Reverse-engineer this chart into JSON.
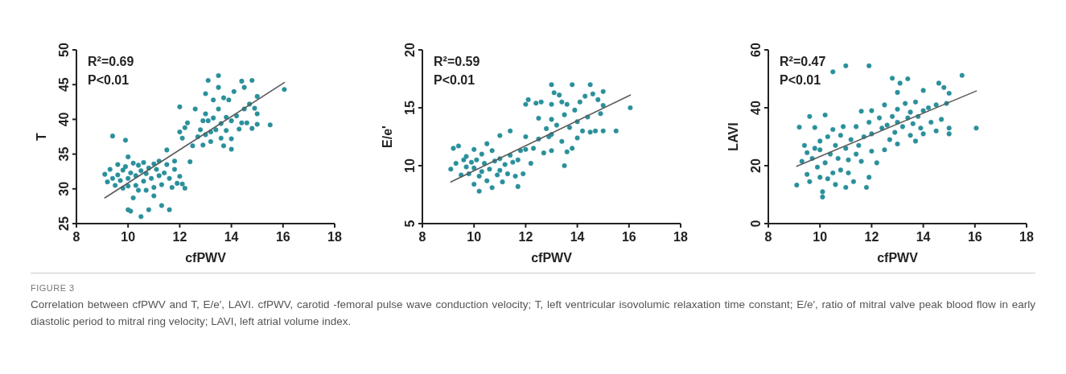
{
  "chart_data": [
    {
      "type": "scatter",
      "xlabel": "cfPWV",
      "ylabel": "T",
      "annotations": [
        "R²=0.69",
        "P<0.01"
      ],
      "xlim": [
        8,
        18
      ],
      "xticks": [
        8,
        10,
        12,
        14,
        16,
        18
      ],
      "ylim": [
        25,
        50
      ],
      "yticks": [
        25,
        30,
        35,
        40,
        45,
        50
      ],
      "marker": "circle",
      "series": [
        {
          "type": "scatter",
          "color": "#2a909b",
          "x": [
            9.1,
            9.2,
            9.3,
            9.4,
            9.4,
            9.5,
            9.6,
            9.6,
            9.7,
            9.8,
            9.8,
            9.9,
            9.9,
            10,
            10,
            10,
            10,
            10.1,
            10.1,
            10.2,
            10.2,
            10.3,
            10.3,
            10.4,
            10.4,
            10.5,
            10.5,
            10.6,
            10.6,
            10.7,
            10.7,
            10.8,
            10.8,
            10.9,
            11,
            11,
            11,
            11.1,
            11.2,
            11.2,
            11.3,
            11.3,
            11.4,
            11.5,
            11.5,
            11.6,
            11.6,
            11.7,
            11.8,
            11.8,
            11.9,
            12,
            12.1,
            12.2,
            12,
            12,
            12.1,
            12.2,
            12.3,
            12.4,
            12.5,
            12.6,
            12.7,
            12.8,
            12.9,
            12.9,
            13,
            13,
            13,
            13.1,
            13.1,
            13.2,
            13.2,
            13.3,
            13.3,
            13.4,
            13.5,
            13.5,
            13.5,
            13.6,
            13.6,
            13.7,
            13.7,
            13.8,
            13.8,
            13.9,
            14,
            14,
            14,
            14.1,
            14.2,
            14.3,
            14.4,
            14.4,
            14.5,
            14.5,
            14.6,
            14.7,
            14.8,
            14.8,
            14.9,
            15,
            15,
            15,
            15.5,
            16.05
          ],
          "values": [
            32.1,
            31,
            32.8,
            37.6,
            31.5,
            30.5,
            33.5,
            32,
            31.2,
            30.1,
            32.7,
            37,
            33.2,
            34.6,
            31.5,
            30.4,
            27,
            26.8,
            32.3,
            33.7,
            28.7,
            31.9,
            30.5,
            33.4,
            29.8,
            26,
            32.6,
            31.1,
            33.8,
            29.8,
            32.2,
            27,
            33,
            31.5,
            33.6,
            30.2,
            29,
            32.8,
            31.9,
            34,
            27.6,
            30.6,
            32.3,
            35.6,
            33.5,
            27,
            31.5,
            30.2,
            32.8,
            34,
            30.8,
            31.8,
            30.7,
            30.1,
            41.8,
            38.2,
            37.3,
            38.8,
            39.5,
            33.9,
            36.2,
            41.5,
            37.5,
            38.5,
            36.3,
            39.8,
            43.7,
            40.8,
            37.8,
            45.6,
            39.8,
            38.2,
            36.8,
            42.8,
            40.2,
            38.5,
            46.3,
            44.6,
            41.5,
            39.4,
            37.3,
            43.1,
            36.2,
            40.3,
            38.4,
            42.8,
            39.8,
            35.7,
            37.2,
            44,
            40.5,
            38.6,
            45.5,
            39.5,
            41.5,
            44.6,
            39.5,
            42.2,
            45.6,
            38.7,
            41.6,
            43.3,
            40.8,
            39.3,
            39.2,
            44.3
          ]
        },
        {
          "type": "line",
          "marker": "none",
          "color": "#5a5a5a",
          "x": [
            9.1,
            16.05
          ],
          "values": [
            28.7,
            45.3
          ]
        }
      ]
    },
    {
      "type": "scatter",
      "xlabel": "cfPWV",
      "ylabel": "E/e'",
      "annotations": [
        "R²=0.59",
        "P<0.01"
      ],
      "xlim": [
        8,
        18
      ],
      "xticks": [
        8,
        10,
        12,
        14,
        16,
        18
      ],
      "ylim": [
        5,
        20
      ],
      "yticks": [
        5,
        10,
        15,
        20
      ],
      "marker": "circle",
      "series": [
        {
          "type": "scatter",
          "color": "#2a909b",
          "x": [
            9.1,
            9.2,
            9.3,
            9.4,
            9.5,
            9.6,
            9.7,
            9.7,
            9.8,
            9.9,
            10,
            10,
            10,
            10.1,
            10.2,
            10.2,
            10.3,
            10.3,
            10.4,
            10.5,
            10.5,
            10.6,
            10.7,
            10.7,
            10.8,
            10.9,
            11,
            11,
            11,
            11.1,
            11.2,
            11.3,
            11.4,
            11.4,
            11.5,
            11.6,
            11.7,
            11.7,
            11.8,
            11.9,
            12,
            12,
            12,
            12.1,
            12.2,
            12.3,
            12.4,
            12.5,
            12.5,
            12.6,
            12.7,
            12.8,
            12.9,
            13,
            13,
            13,
            13,
            13,
            13.1,
            13.2,
            13.3,
            13.4,
            13.4,
            13.5,
            13.5,
            13.6,
            13.6,
            13.7,
            13.8,
            13.8,
            13.9,
            14,
            14,
            14.1,
            14.2,
            14.3,
            14.4,
            14.5,
            14.5,
            14.6,
            14.7,
            14.8,
            14.9,
            15,
            15,
            15,
            15.5,
            16.05
          ],
          "values": [
            9.7,
            11.5,
            10.2,
            11.7,
            9.2,
            10.5,
            9.9,
            10.8,
            9.3,
            10.3,
            8.4,
            11.4,
            9.8,
            10.5,
            9.1,
            7.8,
            11,
            9.5,
            10.2,
            11.9,
            8.7,
            9.7,
            11.3,
            8.1,
            10.4,
            9.2,
            10.6,
            12.6,
            9.6,
            8.6,
            10.1,
            9.3,
            10.9,
            13,
            10.3,
            9.1,
            8.2,
            10.5,
            11.3,
            9.3,
            12.5,
            15.3,
            11.4,
            15.7,
            10.2,
            11.5,
            15.4,
            14.1,
            12.3,
            15.5,
            11.1,
            13.2,
            12.5,
            17,
            15.3,
            14,
            12.7,
            11.3,
            16.3,
            13.5,
            16.1,
            15.5,
            12.1,
            14.4,
            10,
            11.2,
            15.3,
            13.3,
            17,
            11.5,
            14.8,
            12.4,
            13.8,
            15.5,
            13,
            16,
            14.2,
            17,
            12.9,
            16.2,
            13,
            15.7,
            14.5,
            16.4,
            13,
            15.2,
            13,
            15
          ]
        },
        {
          "type": "line",
          "marker": "none",
          "color": "#5a5a5a",
          "x": [
            9.1,
            16.05
          ],
          "values": [
            8.6,
            16.1
          ]
        }
      ]
    },
    {
      "type": "scatter",
      "xlabel": "cfPWV",
      "ylabel": "LAVI",
      "annotations": [
        "R²=0.47",
        "P<0.01"
      ],
      "xlim": [
        8,
        18
      ],
      "xticks": [
        8,
        10,
        12,
        14,
        16,
        18
      ],
      "ylim": [
        0,
        60
      ],
      "yticks": [
        0,
        20,
        40,
        60
      ],
      "marker": "circle",
      "series": [
        {
          "type": "scatter",
          "color": "#2a909b",
          "x": [
            9.1,
            9.2,
            9.3,
            9.4,
            9.5,
            9.5,
            9.6,
            9.6,
            9.7,
            9.8,
            9.8,
            9.9,
            10,
            10,
            10,
            10.1,
            10.1,
            10.2,
            10.2,
            10.3,
            10.3,
            10.4,
            10.5,
            10.5,
            10.5,
            10.6,
            10.6,
            10.7,
            10.8,
            10.8,
            10.9,
            11,
            11,
            11,
            11.1,
            11.1,
            11.2,
            11.3,
            11.4,
            11.4,
            11.5,
            11.6,
            11.6,
            11.7,
            11.8,
            11.9,
            11.9,
            11.9,
            12,
            12,
            12,
            12.2,
            12.3,
            12.4,
            12.5,
            12.5,
            12.6,
            12.7,
            12.8,
            12.8,
            12.9,
            13,
            13,
            13,
            13,
            13.1,
            13.2,
            13.3,
            13.4,
            13.4,
            13.5,
            13.5,
            13.6,
            13.7,
            13.7,
            13.8,
            13.9,
            14,
            14,
            14,
            14.2,
            14.3,
            14.5,
            14.5,
            14.6,
            14.7,
            14.8,
            14.9,
            15,
            15,
            15,
            15.5,
            16.05
          ],
          "values": [
            13.3,
            33.3,
            21.5,
            27,
            17,
            24.5,
            37,
            14.5,
            22.5,
            33.2,
            26,
            19.5,
            28.5,
            16,
            25.5,
            11,
            9.2,
            37.5,
            21,
            30,
            15.5,
            24,
            52.4,
            32.5,
            17.5,
            27,
            13.5,
            22.5,
            30.5,
            18.5,
            33.5,
            54.5,
            26,
            12.5,
            22,
            17.5,
            29,
            14.5,
            33.5,
            24,
            27,
            38.8,
            21.5,
            30,
            12.5,
            54.5,
            16,
            35,
            39,
            31,
            25,
            21,
            36.5,
            33,
            25.5,
            41,
            34,
            29,
            50.2,
            37,
            31.5,
            45.3,
            39.5,
            35,
            27.5,
            48.5,
            33.5,
            41.5,
            36.5,
            50,
            38.5,
            30.5,
            34.5,
            42,
            28.5,
            37,
            33,
            46,
            39,
            31,
            40,
            35,
            41,
            32,
            48.5,
            36,
            47,
            41.5,
            33,
            45,
            31,
            51.2,
            33
          ]
        },
        {
          "type": "line",
          "marker": "none",
          "color": "#5a5a5a",
          "x": [
            9.1,
            16.05
          ],
          "values": [
            19.8,
            45.8
          ]
        }
      ]
    },
    {
      "type": "other",
      "title": "FIGURE 3",
      "annotations": [
        "Correlation between cfPWV and T, E/e′, LAVI. cfPWV, carotid -femoral pulse wave conduction velocity; T, left ventricular isovolumic relaxation time constant; E/e′, ratio of mitral valve peak blood flow in early diastolic period to mitral ring velocity; LAVI, left atrial volume index."
      ]
    }
  ]
}
